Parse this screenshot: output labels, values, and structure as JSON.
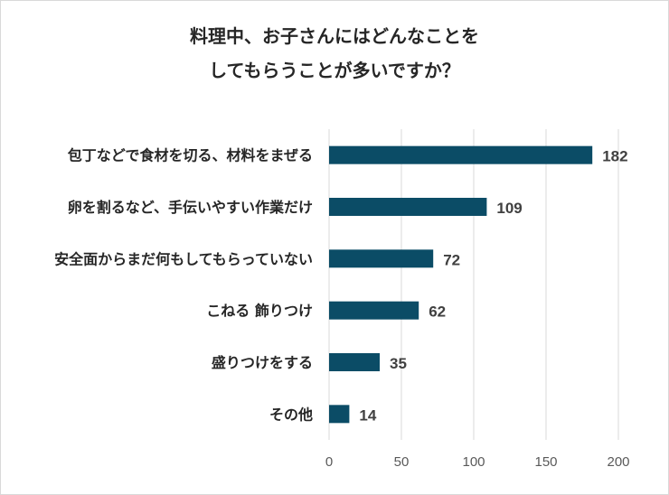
{
  "chart_data": {
    "type": "bar",
    "orientation": "horizontal",
    "title_lines": [
      "料理中、お子さんにはどんなことを",
      "してもらうことが多いですか？"
    ],
    "categories": [
      "包丁などで食材を切る、材料をまぜる",
      "卵を割るなど、手伝いやすい作業だけ",
      "安全面からまだ何もしてもらっていない",
      "こねる 飾りつけ",
      "盛りつけをする",
      "その他"
    ],
    "values": [
      182,
      109,
      72,
      62,
      35,
      14
    ],
    "xlim": [
      0,
      200
    ],
    "xticks": [
      "0",
      "50",
      "100",
      "150",
      "200"
    ],
    "grid": true,
    "bar_color": "#0b4c66",
    "data_labels": true
  }
}
